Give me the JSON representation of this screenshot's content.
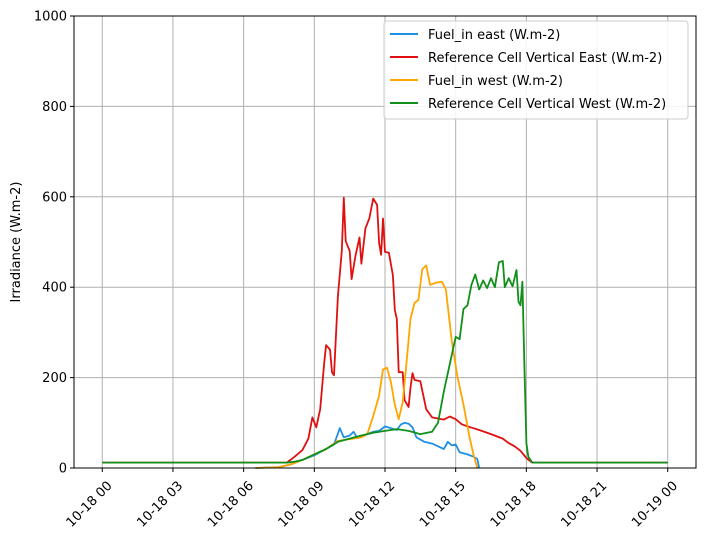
{
  "chart_data": {
    "type": "line",
    "title": "",
    "xlabel": "",
    "ylabel": "Irradiance (W.m-2)",
    "ylim": [
      0,
      1000
    ],
    "xlim": [
      "10-18 00",
      "10-19 00"
    ],
    "x_ticks": [
      "10-18 00",
      "10-18 03",
      "10-18 06",
      "10-18 09",
      "10-18 12",
      "10-18 15",
      "10-18 18",
      "10-18 21",
      "10-19 00"
    ],
    "y_ticks": [
      "0",
      "200",
      "400",
      "600",
      "800",
      "1000"
    ],
    "grid": true,
    "legend_position": "top-right",
    "series": [
      {
        "name": "Fuel_in east (W.m-2)",
        "color": "#1f8fe5",
        "points": [
          [
            "10-18 06:30",
            0
          ],
          [
            "10-18 07:30",
            2
          ],
          [
            "10-18 08:00",
            8
          ],
          [
            "10-18 08:30",
            18
          ],
          [
            "10-18 09:00",
            28
          ],
          [
            "10-18 09:30",
            42
          ],
          [
            "10-18 09:50",
            52
          ],
          [
            "10-18 10:05",
            88
          ],
          [
            "10-18 10:15",
            68
          ],
          [
            "10-18 10:30",
            72
          ],
          [
            "10-18 10:40",
            80
          ],
          [
            "10-18 10:50",
            66
          ],
          [
            "10-18 11:00",
            70
          ],
          [
            "10-18 11:15",
            75
          ],
          [
            "10-18 11:30",
            80
          ],
          [
            "10-18 11:45",
            82
          ],
          [
            "10-18 12:00",
            92
          ],
          [
            "10-18 12:15",
            88
          ],
          [
            "10-18 12:30",
            84
          ],
          [
            "10-18 12:40",
            96
          ],
          [
            "10-18 12:50",
            100
          ],
          [
            "10-18 13:00",
            98
          ],
          [
            "10-18 13:10",
            90
          ],
          [
            "10-18 13:20",
            68
          ],
          [
            "10-18 13:40",
            58
          ],
          [
            "10-18 14:00",
            54
          ],
          [
            "10-18 14:15",
            48
          ],
          [
            "10-18 14:30",
            42
          ],
          [
            "10-18 14:40",
            58
          ],
          [
            "10-18 14:50",
            50
          ],
          [
            "10-18 15:00",
            52
          ],
          [
            "10-18 15:10",
            35
          ],
          [
            "10-18 15:30",
            30
          ],
          [
            "10-18 15:45",
            25
          ],
          [
            "10-18 15:55",
            20
          ],
          [
            "10-18 16:00",
            0
          ]
        ]
      },
      {
        "name": "Reference Cell Vertical East (W.m-2)",
        "color": "#e01010",
        "points": [
          [
            "10-18 00:00",
            12
          ],
          [
            "10-18 07:50",
            12
          ],
          [
            "10-18 08:10",
            25
          ],
          [
            "10-18 08:30",
            40
          ],
          [
            "10-18 08:45",
            65
          ],
          [
            "10-18 08:55",
            112
          ],
          [
            "10-18 09:05",
            90
          ],
          [
            "10-18 09:15",
            130
          ],
          [
            "10-18 09:25",
            230
          ],
          [
            "10-18 09:30",
            272
          ],
          [
            "10-18 09:40",
            262
          ],
          [
            "10-18 09:45",
            212
          ],
          [
            "10-18 09:50",
            205
          ],
          [
            "10-18 10:00",
            380
          ],
          [
            "10-18 10:10",
            480
          ],
          [
            "10-18 10:15",
            598
          ],
          [
            "10-18 10:20",
            502
          ],
          [
            "10-18 10:30",
            480
          ],
          [
            "10-18 10:35",
            418
          ],
          [
            "10-18 10:45",
            470
          ],
          [
            "10-18 10:55",
            510
          ],
          [
            "10-18 11:00",
            452
          ],
          [
            "10-18 11:10",
            530
          ],
          [
            "10-18 11:20",
            552
          ],
          [
            "10-18 11:30",
            596
          ],
          [
            "10-18 11:40",
            582
          ],
          [
            "10-18 11:45",
            498
          ],
          [
            "10-18 11:50",
            472
          ],
          [
            "10-18 11:55",
            552
          ],
          [
            "10-18 12:00",
            478
          ],
          [
            "10-18 12:10",
            476
          ],
          [
            "10-18 12:20",
            426
          ],
          [
            "10-18 12:25",
            350
          ],
          [
            "10-18 12:30",
            330
          ],
          [
            "10-18 12:35",
            212
          ],
          [
            "10-18 12:45",
            212
          ],
          [
            "10-18 12:50",
            150
          ],
          [
            "10-18 13:00",
            135
          ],
          [
            "10-18 13:05",
            178
          ],
          [
            "10-18 13:10",
            210
          ],
          [
            "10-18 13:15",
            195
          ],
          [
            "10-18 13:30",
            192
          ],
          [
            "10-18 13:45",
            130
          ],
          [
            "10-18 14:00",
            112
          ],
          [
            "10-18 14:30",
            107
          ],
          [
            "10-18 14:45",
            114
          ],
          [
            "10-18 15:00",
            108
          ],
          [
            "10-18 15:15",
            97
          ],
          [
            "10-18 15:30",
            92
          ],
          [
            "10-18 15:45",
            88
          ],
          [
            "10-18 16:00",
            84
          ],
          [
            "10-18 16:30",
            75
          ],
          [
            "10-18 17:00",
            65
          ],
          [
            "10-18 17:15",
            55
          ],
          [
            "10-18 17:30",
            48
          ],
          [
            "10-18 17:45",
            38
          ],
          [
            "10-18 18:00",
            22
          ],
          [
            "10-18 18:15",
            12
          ],
          [
            "10-19 00:00",
            12
          ]
        ]
      },
      {
        "name": "Fuel_in west (W.m-2)",
        "color": "#ffa500",
        "points": [
          [
            "10-18 06:30",
            0
          ],
          [
            "10-18 07:30",
            2
          ],
          [
            "10-18 08:00",
            8
          ],
          [
            "10-18 08:30",
            18
          ],
          [
            "10-18 09:00",
            30
          ],
          [
            "10-18 09:30",
            42
          ],
          [
            "10-18 10:00",
            60
          ],
          [
            "10-18 10:30",
            64
          ],
          [
            "10-18 11:00",
            68
          ],
          [
            "10-18 11:15",
            75
          ],
          [
            "10-18 11:30",
            115
          ],
          [
            "10-18 11:45",
            160
          ],
          [
            "10-18 11:55",
            218
          ],
          [
            "10-18 12:05",
            222
          ],
          [
            "10-18 12:15",
            190
          ],
          [
            "10-18 12:25",
            140
          ],
          [
            "10-18 12:35",
            108
          ],
          [
            "10-18 12:45",
            145
          ],
          [
            "10-18 12:55",
            235
          ],
          [
            "10-18 13:05",
            330
          ],
          [
            "10-18 13:15",
            365
          ],
          [
            "10-18 13:25",
            372
          ],
          [
            "10-18 13:35",
            440
          ],
          [
            "10-18 13:45",
            448
          ],
          [
            "10-18 13:55",
            405
          ],
          [
            "10-18 14:10",
            410
          ],
          [
            "10-18 14:25",
            412
          ],
          [
            "10-18 14:35",
            395
          ],
          [
            "10-18 14:50",
            280
          ],
          [
            "10-18 15:05",
            200
          ],
          [
            "10-18 15:20",
            140
          ],
          [
            "10-18 15:35",
            70
          ],
          [
            "10-18 15:45",
            30
          ],
          [
            "10-18 15:55",
            0
          ]
        ]
      },
      {
        "name": "Reference Cell Vertical West (W.m-2)",
        "color": "#10901a",
        "points": [
          [
            "10-18 00:00",
            12
          ],
          [
            "10-18 07:50",
            12
          ],
          [
            "10-18 08:10",
            14
          ],
          [
            "10-18 08:30",
            18
          ],
          [
            "10-18 09:00",
            30
          ],
          [
            "10-18 09:30",
            42
          ],
          [
            "10-18 10:00",
            58
          ],
          [
            "10-18 10:30",
            65
          ],
          [
            "10-18 11:00",
            72
          ],
          [
            "10-18 11:30",
            78
          ],
          [
            "10-18 12:00",
            82
          ],
          [
            "10-18 12:30",
            86
          ],
          [
            "10-18 13:00",
            82
          ],
          [
            "10-18 13:30",
            75
          ],
          [
            "10-18 14:00",
            80
          ],
          [
            "10-18 14:15",
            100
          ],
          [
            "10-18 14:30",
            170
          ],
          [
            "10-18 14:45",
            230
          ],
          [
            "10-18 15:00",
            290
          ],
          [
            "10-18 15:10",
            285
          ],
          [
            "10-18 15:20",
            352
          ],
          [
            "10-18 15:30",
            360
          ],
          [
            "10-18 15:40",
            405
          ],
          [
            "10-18 15:50",
            428
          ],
          [
            "10-18 16:00",
            395
          ],
          [
            "10-18 16:10",
            415
          ],
          [
            "10-18 16:20",
            398
          ],
          [
            "10-18 16:30",
            420
          ],
          [
            "10-18 16:40",
            400
          ],
          [
            "10-18 16:50",
            455
          ],
          [
            "10-18 17:00",
            458
          ],
          [
            "10-18 17:05",
            400
          ],
          [
            "10-18 17:15",
            420
          ],
          [
            "10-18 17:25",
            402
          ],
          [
            "10-18 17:35",
            438
          ],
          [
            "10-18 17:40",
            368
          ],
          [
            "10-18 17:45",
            360
          ],
          [
            "10-18 17:50",
            412
          ],
          [
            "10-18 17:55",
            225
          ],
          [
            "10-18 18:00",
            55
          ],
          [
            "10-18 18:05",
            25
          ],
          [
            "10-18 18:15",
            12
          ],
          [
            "10-19 00:00",
            12
          ]
        ]
      }
    ]
  }
}
